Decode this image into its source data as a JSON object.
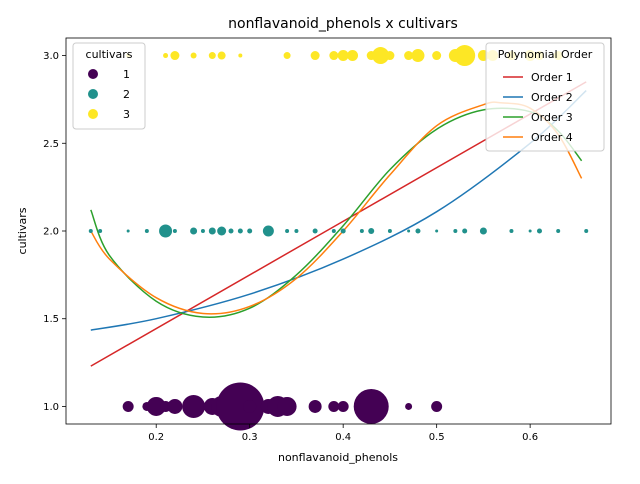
{
  "chart_data": {
    "type": "scatter",
    "title": "nonflavanoid_phenols x cultivars",
    "xlabel": "nonflavanoid_phenols",
    "ylabel": "cultivars",
    "xlim": [
      0.1035,
      0.6865
    ],
    "ylim": [
      0.9,
      3.1
    ],
    "xticks": [
      "0.2",
      "0.3",
      "0.4",
      "0.5",
      "0.6"
    ],
    "xtick_values": [
      0.2,
      0.3,
      0.4,
      0.5,
      0.6
    ],
    "yticks": [
      "1.0",
      "1.5",
      "2.0",
      "2.5",
      "3.0"
    ],
    "ytick_values": [
      1.0,
      1.5,
      2.0,
      2.5,
      3.0
    ],
    "grid": false,
    "color_legend": {
      "title": "cultivars",
      "placement": "top-left",
      "entries": [
        {
          "label": "1",
          "color": "#440154"
        },
        {
          "label": "2",
          "color": "#21918c"
        },
        {
          "label": "3",
          "color": "#fde725"
        }
      ]
    },
    "fit_legend": {
      "title": "Polynomial Order",
      "placement": "top-right",
      "entries": [
        {
          "label": "Order 1",
          "color": "#d62728"
        },
        {
          "label": "Order 2",
          "color": "#1f77b4"
        },
        {
          "label": "Order 3",
          "color": "#2ca02c"
        },
        {
          "label": "Order 4",
          "color": "#ff7f0e"
        }
      ]
    },
    "fit_range": [
      0.13,
      0.66
    ],
    "fits": [
      {
        "name": "Order 1",
        "color": "#d62728",
        "x": [
          0.13,
          0.66
        ],
        "y": [
          1.23,
          2.85
        ]
      },
      {
        "name": "Order 2",
        "color": "#1f77b4",
        "x": [
          0.13,
          0.2,
          0.3,
          0.4,
          0.5,
          0.6,
          0.66
        ],
        "y": [
          1.435,
          1.5,
          1.64,
          1.84,
          2.11,
          2.5,
          2.8
        ]
      },
      {
        "name": "Order 3",
        "color": "#2ca02c",
        "x": [
          0.13,
          0.15,
          0.2,
          0.25,
          0.3,
          0.35,
          0.4,
          0.45,
          0.5,
          0.55,
          0.6,
          0.63,
          0.655
        ],
        "y": [
          2.12,
          1.86,
          1.6,
          1.51,
          1.56,
          1.75,
          2.03,
          2.35,
          2.58,
          2.69,
          2.68,
          2.57,
          2.4
        ]
      },
      {
        "name": "Order 4",
        "color": "#ff7f0e",
        "x": [
          0.13,
          0.15,
          0.2,
          0.25,
          0.3,
          0.35,
          0.4,
          0.45,
          0.5,
          0.55,
          0.57,
          0.6,
          0.63,
          0.655
        ],
        "y": [
          2.0,
          1.84,
          1.62,
          1.53,
          1.57,
          1.73,
          2.0,
          2.32,
          2.6,
          2.72,
          2.73,
          2.7,
          2.55,
          2.3
        ]
      }
    ],
    "series": [
      {
        "name": "1",
        "color": "#440154",
        "y": 1,
        "points": [
          {
            "x": 0.17,
            "size": 11
          },
          {
            "x": 0.19,
            "size": 9
          },
          {
            "x": 0.2,
            "size": 19
          },
          {
            "x": 0.21,
            "size": 11
          },
          {
            "x": 0.22,
            "size": 15
          },
          {
            "x": 0.24,
            "size": 23
          },
          {
            "x": 0.26,
            "size": 17
          },
          {
            "x": 0.27,
            "size": 21
          },
          {
            "x": 0.28,
            "size": 21
          },
          {
            "x": 0.29,
            "size": 48
          },
          {
            "x": 0.3,
            "size": 13
          },
          {
            "x": 0.32,
            "size": 15
          },
          {
            "x": 0.33,
            "size": 21
          },
          {
            "x": 0.34,
            "size": 19
          },
          {
            "x": 0.37,
            "size": 13
          },
          {
            "x": 0.39,
            "size": 11
          },
          {
            "x": 0.4,
            "size": 11
          },
          {
            "x": 0.43,
            "size": 35
          },
          {
            "x": 0.47,
            "size": 7
          },
          {
            "x": 0.5,
            "size": 11
          }
        ]
      },
      {
        "name": "2",
        "color": "#21918c",
        "y": 2,
        "points": [
          {
            "x": 0.13,
            "size": 4
          },
          {
            "x": 0.14,
            "size": 4
          },
          {
            "x": 0.17,
            "size": 3
          },
          {
            "x": 0.19,
            "size": 4
          },
          {
            "x": 0.21,
            "size": 13
          },
          {
            "x": 0.22,
            "size": 4
          },
          {
            "x": 0.24,
            "size": 7
          },
          {
            "x": 0.25,
            "size": 4
          },
          {
            "x": 0.26,
            "size": 7
          },
          {
            "x": 0.27,
            "size": 9
          },
          {
            "x": 0.28,
            "size": 5
          },
          {
            "x": 0.29,
            "size": 5
          },
          {
            "x": 0.3,
            "size": 5
          },
          {
            "x": 0.32,
            "size": 11
          },
          {
            "x": 0.34,
            "size": 4
          },
          {
            "x": 0.35,
            "size": 4
          },
          {
            "x": 0.37,
            "size": 5
          },
          {
            "x": 0.39,
            "size": 4
          },
          {
            "x": 0.4,
            "size": 5
          },
          {
            "x": 0.42,
            "size": 4
          },
          {
            "x": 0.43,
            "size": 6
          },
          {
            "x": 0.45,
            "size": 4
          },
          {
            "x": 0.47,
            "size": 3
          },
          {
            "x": 0.48,
            "size": 5
          },
          {
            "x": 0.5,
            "size": 3
          },
          {
            "x": 0.52,
            "size": 4
          },
          {
            "x": 0.53,
            "size": 5
          },
          {
            "x": 0.55,
            "size": 7
          },
          {
            "x": 0.58,
            "size": 4
          },
          {
            "x": 0.6,
            "size": 3
          },
          {
            "x": 0.61,
            "size": 5
          },
          {
            "x": 0.63,
            "size": 4
          },
          {
            "x": 0.66,
            "size": 4
          }
        ]
      },
      {
        "name": "3",
        "color": "#fde725",
        "y": 3,
        "points": [
          {
            "x": 0.17,
            "size": 4
          },
          {
            "x": 0.21,
            "size": 5
          },
          {
            "x": 0.22,
            "size": 9
          },
          {
            "x": 0.24,
            "size": 6
          },
          {
            "x": 0.26,
            "size": 7
          },
          {
            "x": 0.27,
            "size": 8
          },
          {
            "x": 0.29,
            "size": 4
          },
          {
            "x": 0.34,
            "size": 7
          },
          {
            "x": 0.37,
            "size": 9
          },
          {
            "x": 0.39,
            "size": 9
          },
          {
            "x": 0.4,
            "size": 11
          },
          {
            "x": 0.41,
            "size": 11
          },
          {
            "x": 0.43,
            "size": 9
          },
          {
            "x": 0.44,
            "size": 17
          },
          {
            "x": 0.45,
            "size": 9
          },
          {
            "x": 0.47,
            "size": 9
          },
          {
            "x": 0.48,
            "size": 13
          },
          {
            "x": 0.5,
            "size": 9
          },
          {
            "x": 0.52,
            "size": 13
          },
          {
            "x": 0.53,
            "size": 21
          },
          {
            "x": 0.55,
            "size": 11
          },
          {
            "x": 0.56,
            "size": 11
          },
          {
            "x": 0.58,
            "size": 9
          },
          {
            "x": 0.6,
            "size": 11
          },
          {
            "x": 0.61,
            "size": 9
          },
          {
            "x": 0.63,
            "size": 9
          }
        ]
      }
    ]
  }
}
